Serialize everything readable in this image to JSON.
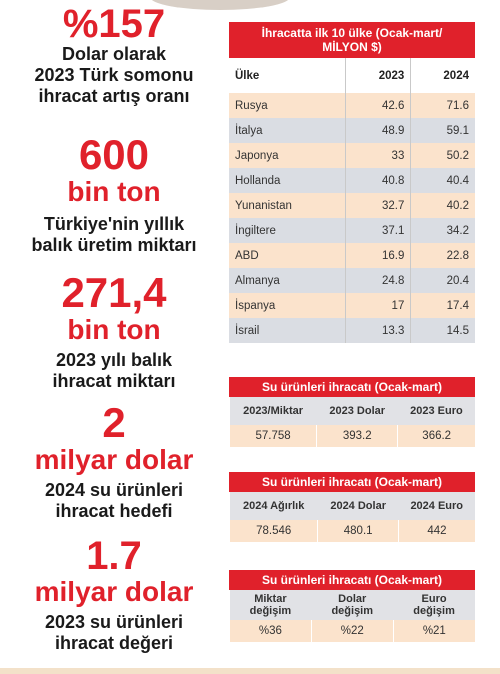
{
  "stats": [
    {
      "big": "%157",
      "desc": [
        "Dolar olarak",
        "2023 Türk somonu",
        "ihracat artış oranı"
      ]
    },
    {
      "big": "600",
      "big2": "bin ton",
      "desc": [
        "Türkiye'nin yıllık",
        "balık üretim miktarı"
      ]
    },
    {
      "big": "271,4",
      "big2": "bin ton",
      "desc": [
        "2023 yılı balık",
        "ihracat miktarı"
      ]
    },
    {
      "big": "2",
      "big2": "milyar dolar",
      "desc": [
        "2024 su ürünleri",
        "ihracat hedefi"
      ]
    },
    {
      "big": "1.7",
      "big2": "milyar dolar",
      "desc": [
        "2023 su ürünleri",
        "ihracat değeri"
      ]
    }
  ],
  "top10": {
    "title": "İhracatta ilk 10 ülke (Ocak-mart/ MİLYON $)",
    "headers": [
      "Ülke",
      "2023",
      "2024"
    ],
    "rows": [
      [
        "Rusya",
        "42.6",
        "71.6"
      ],
      [
        "İtalya",
        "48.9",
        "59.1"
      ],
      [
        "Japonya",
        "33",
        "50.2"
      ],
      [
        "Hollanda",
        "40.8",
        "40.4"
      ],
      [
        "Yunanistan",
        "32.7",
        "40.2"
      ],
      [
        "İngiltere",
        "37.1",
        "34.2"
      ],
      [
        "ABD",
        "16.9",
        "22.8"
      ],
      [
        "Almanya",
        "24.8",
        "20.4"
      ],
      [
        "İspanya",
        "17",
        "17.4"
      ],
      [
        "İsrail",
        "13.3",
        "14.5"
      ]
    ]
  },
  "box1": {
    "title": "Su ürünleri ihracatı (Ocak-mart)",
    "headers": [
      "2023/Miktar",
      "2023 Dolar",
      "2023 Euro"
    ],
    "values": [
      "57.758",
      "393.2",
      "366.2"
    ]
  },
  "box2": {
    "title": "Su ürünleri ihracatı (Ocak-mart)",
    "headers": [
      "2024 Ağırlık",
      "2024 Dolar",
      "2024 Euro"
    ],
    "values": [
      "78.546",
      "480.1",
      "442"
    ]
  },
  "box3": {
    "title": "Su ürünleri ihracatı (Ocak-mart)",
    "headers": [
      [
        "Miktar",
        "değişim"
      ],
      [
        "Dolar",
        "değişim"
      ],
      [
        "Euro",
        "değişim"
      ]
    ],
    "values": [
      "%36",
      "%22",
      "%21"
    ]
  }
}
